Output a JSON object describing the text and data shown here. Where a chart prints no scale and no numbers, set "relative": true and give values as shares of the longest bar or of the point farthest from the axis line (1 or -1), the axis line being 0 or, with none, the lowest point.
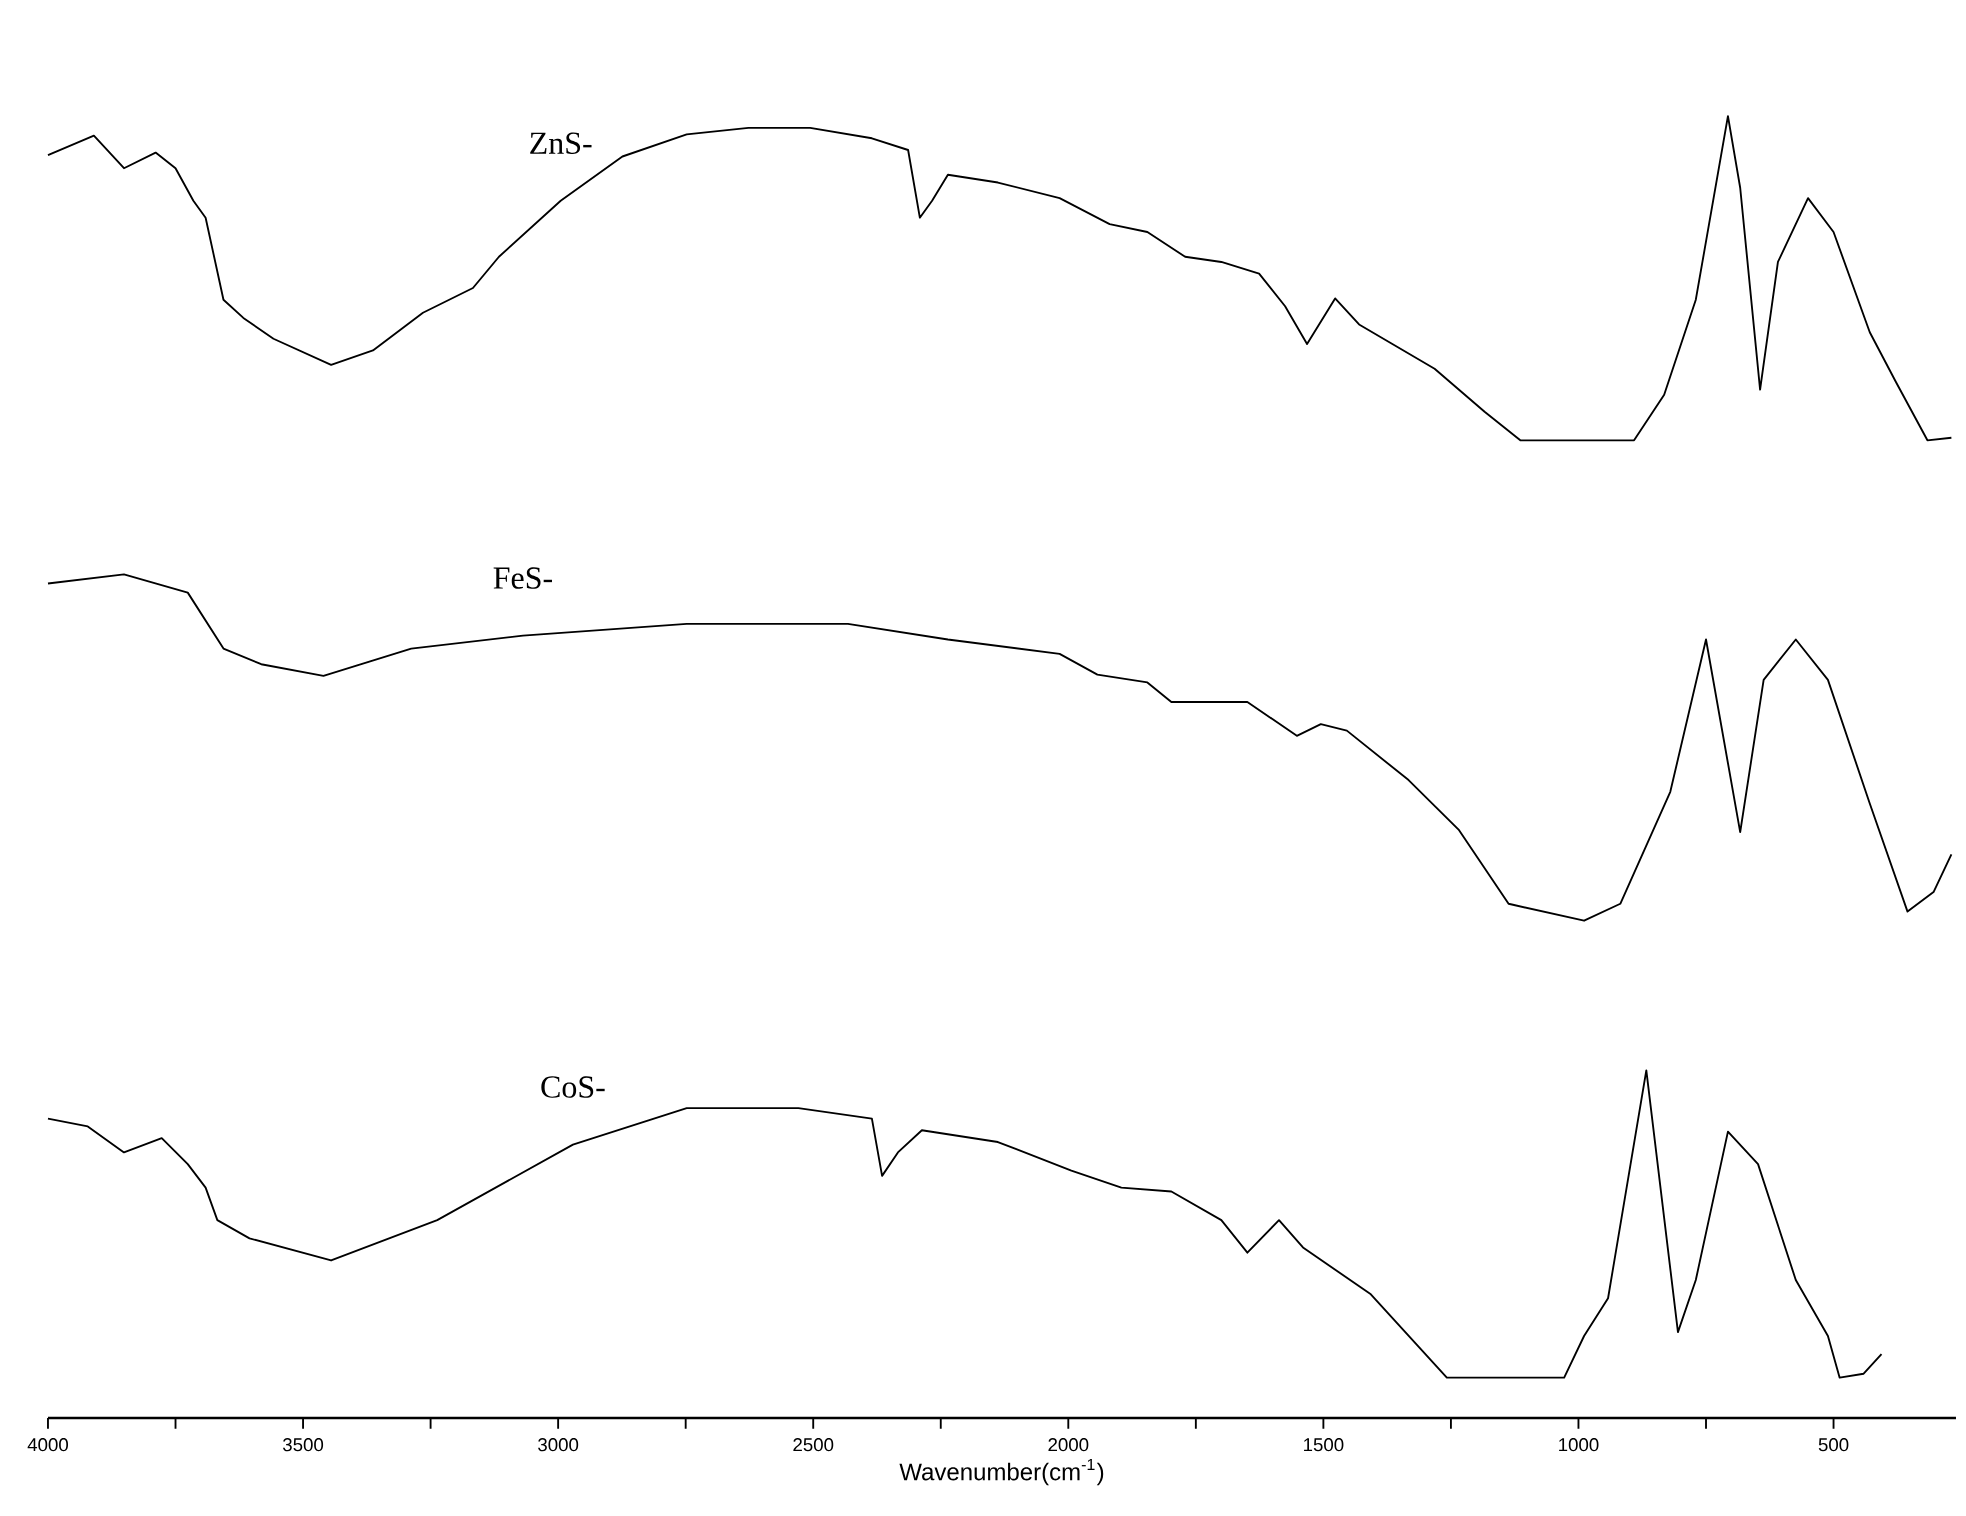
{
  "chart_data": {
    "type": "line",
    "relative": true,
    "xlabel": "Wavenumber(cm$^{-1}$)",
    "xlim": [
      4000,
      260
    ],
    "xticks": [
      4000,
      {
        "value": 3750,
        "label": null
      },
      3500,
      {
        "value": 3250,
        "label": null
      },
      3000,
      {
        "value": 2750,
        "label": null
      },
      2500,
      {
        "value": 2250,
        "label": null
      },
      2000,
      {
        "value": 1750,
        "label": null
      },
      1500,
      {
        "value": 1250,
        "label": null
      },
      1000,
      {
        "value": 750,
        "label": null
      },
      500
    ],
    "series": [
      {
        "name": "ZnS-",
        "color": "#000000",
        "x": [
          4000,
          3910,
          3851,
          3789,
          3750,
          3715,
          3691,
          3656,
          3617,
          3558,
          3445,
          3363,
          3265,
          3167,
          3116,
          2995,
          2874,
          2748,
          2627,
          2506,
          2385,
          2314,
          2291,
          2267,
          2236,
          2138,
          2017,
          1919,
          1845,
          1771,
          1700,
          1626,
          1575,
          1532,
          1477,
          1430,
          1282,
          1184,
          1114,
          891,
          832,
          770,
          707,
          683,
          644,
          609,
          550,
          500,
          429,
          378,
          316,
          269
        ],
        "values": [
          0.97,
          0.985,
          0.96,
          0.972,
          0.96,
          0.935,
          0.922,
          0.859,
          0.845,
          0.829,
          0.809,
          0.82,
          0.849,
          0.868,
          0.892,
          0.935,
          0.969,
          0.986,
          0.991,
          0.991,
          0.983,
          0.974,
          0.922,
          0.935,
          0.955,
          0.949,
          0.937,
          0.917,
          0.911,
          0.892,
          0.888,
          0.879,
          0.854,
          0.825,
          0.86,
          0.84,
          0.806,
          0.773,
          0.751,
          0.751,
          0.786,
          0.859,
          1.0,
          0.945,
          0.79,
          0.888,
          0.937,
          0.911,
          0.834,
          0.796,
          0.751,
          0.753
        ]
      },
      {
        "name": "FeS-",
        "color": "#000000",
        "x": [
          4000,
          3851,
          3726,
          3656,
          3582,
          3460,
          3288,
          3069,
          2748,
          2432,
          2236,
          2017,
          1943,
          1845,
          1798,
          1649,
          1552,
          1505,
          1454,
          1333,
          1235,
          1137,
          989,
          918,
          820,
          750,
          683,
          637,
          574,
          511,
          429,
          355,
          304,
          269
        ],
        "values": [
          0.641,
          0.648,
          0.634,
          0.591,
          0.579,
          0.57,
          0.591,
          0.601,
          0.61,
          0.61,
          0.598,
          0.587,
          0.571,
          0.565,
          0.55,
          0.55,
          0.524,
          0.533,
          0.528,
          0.49,
          0.452,
          0.395,
          0.382,
          0.395,
          0.481,
          0.598,
          0.45,
          0.567,
          0.598,
          0.567,
          0.472,
          0.389,
          0.404,
          0.433
        ]
      },
      {
        "name": "CoS-",
        "color": "#000000",
        "x": [
          4000,
          3922,
          3851,
          3777,
          3726,
          3691,
          3668,
          3605,
          3445,
          3237,
          2971,
          2748,
          2529,
          2385,
          2365,
          2334,
          2287,
          2138,
          1994,
          1896,
          1798,
          1700,
          1649,
          1587,
          1540,
          1407,
          1258,
          1028,
          989,
          942,
          867,
          805,
          770,
          707,
          648,
          574,
          511,
          488,
          441,
          406
        ],
        "values": [
          0.23,
          0.224,
          0.204,
          0.215,
          0.195,
          0.177,
          0.152,
          0.138,
          0.121,
          0.152,
          0.21,
          0.238,
          0.238,
          0.23,
          0.186,
          0.204,
          0.221,
          0.212,
          0.19,
          0.177,
          0.174,
          0.152,
          0.127,
          0.152,
          0.131,
          0.095,
          0.031,
          0.031,
          0.063,
          0.092,
          0.267,
          0.066,
          0.106,
          0.22,
          0.195,
          0.106,
          0.063,
          0.031,
          0.034,
          0.049
        ]
      }
    ]
  }
}
